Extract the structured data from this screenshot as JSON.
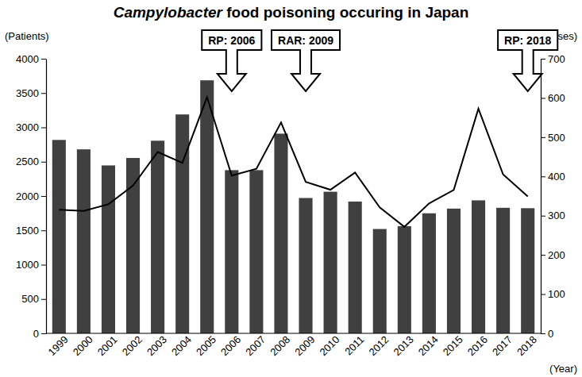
{
  "chart_data": {
    "type": "bar_line",
    "title": "Campylobacter food poisoning occuring in Japan",
    "y_label": "(Patients)",
    "y2_label": "(Cases)",
    "x_label": "(Year)",
    "categories": [
      "1999",
      "2000",
      "2001",
      "2002",
      "2003",
      "2004",
      "2005",
      "2006",
      "2007",
      "2008",
      "2009",
      "2010",
      "2011",
      "2012",
      "2013",
      "2014",
      "2015",
      "2016",
      "2017",
      "2018"
    ],
    "series": [
      {
        "type": "bar",
        "axis": "y2",
        "color": "#404040",
        "values": [
          493,
          469,
          428,
          447,
          491,
          558,
          645,
          416,
          416,
          509,
          345,
          361,
          336,
          266,
          273,
          306,
          318,
          339,
          320,
          319
        ]
      },
      {
        "type": "line",
        "color": "#000000",
        "line_style": "solid",
        "values": [
          1802,
          1784,
          1880,
          2152,
          2642,
          2485,
          3439,
          2297,
          2396,
          3071,
          2206,
          2092,
          2341,
          1834,
          1551,
          1893,
          2089,
          3272,
          2315,
          1995
        ]
      }
    ],
    "ylim": [
      0,
      4000
    ],
    "yticks": [
      0,
      500,
      1000,
      1500,
      2000,
      2500,
      3000,
      3500,
      4000
    ],
    "y2lim": [
      0,
      700
    ],
    "y2ticks": [
      0,
      100,
      200,
      300,
      400,
      500,
      600,
      700
    ],
    "grid": false,
    "annotations": [
      {
        "text": "RP: 2006",
        "x": "2006"
      },
      {
        "text": "RAR: 2009",
        "x": "2009"
      },
      {
        "text": "RP: 2018",
        "x": "2018"
      }
    ]
  }
}
